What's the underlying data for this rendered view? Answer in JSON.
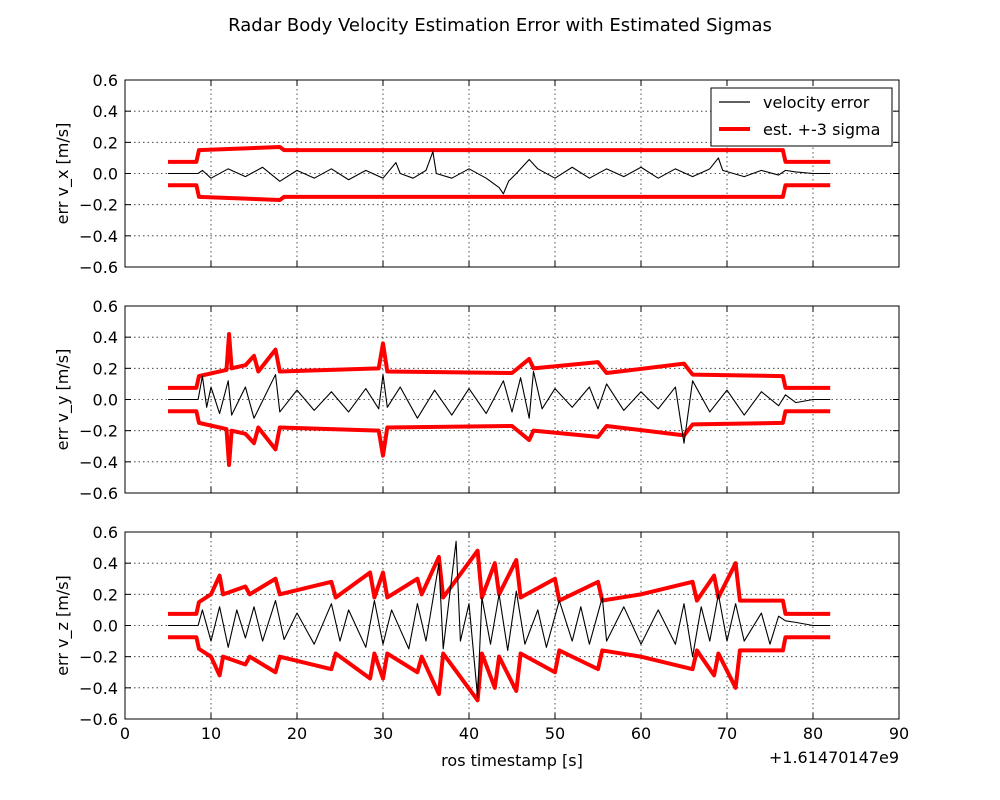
{
  "chart_data": {
    "type": "line",
    "title": "Radar Body Velocity Estimation Error with Estimated Sigmas",
    "xlabel": "ros timestamp [s]",
    "x_offset_label": "+1.61470147e9",
    "xlim": [
      0,
      90
    ],
    "x_ticks": [
      "0",
      "10",
      "20",
      "30",
      "40",
      "50",
      "60",
      "70",
      "80",
      "90"
    ],
    "y_ticks": [
      "0.6",
      "0.4",
      "0.2",
      "0.0",
      "−0.2",
      "−0.4",
      "−0.6"
    ],
    "ylim": [
      -0.6,
      0.6
    ],
    "grid": true,
    "legend": {
      "position": "top-right",
      "entries": [
        {
          "label": "velocity error",
          "color": "#000000"
        },
        {
          "label": "est. +-3 sigma",
          "color": "#ff0000"
        }
      ]
    },
    "colors": {
      "error": "#000000",
      "sigma": "#ff0000"
    },
    "subplots": [
      {
        "ylabel": "err v_x [m/s]",
        "sigma_upper": [
          [
            5,
            0.075
          ],
          [
            8.3,
            0.075
          ],
          [
            8.6,
            0.15
          ],
          [
            18,
            0.17
          ],
          [
            18.5,
            0.15
          ],
          [
            40,
            0.15
          ],
          [
            76.5,
            0.15
          ],
          [
            76.8,
            0.075
          ],
          [
            82,
            0.075
          ]
        ],
        "error": [
          [
            5,
            0
          ],
          [
            8.5,
            0
          ],
          [
            9,
            0.02
          ],
          [
            10,
            -0.03
          ],
          [
            12,
            0.03
          ],
          [
            14,
            -0.02
          ],
          [
            16,
            0.04
          ],
          [
            18,
            -0.05
          ],
          [
            20,
            0.02
          ],
          [
            22,
            -0.03
          ],
          [
            24,
            0.03
          ],
          [
            26,
            -0.04
          ],
          [
            28,
            0.02
          ],
          [
            30,
            -0.03
          ],
          [
            31.5,
            0.07
          ],
          [
            32,
            0.0
          ],
          [
            33.5,
            -0.03
          ],
          [
            35,
            0.02
          ],
          [
            35.8,
            0.14
          ],
          [
            36.2,
            0.0
          ],
          [
            38,
            -0.03
          ],
          [
            40,
            0.03
          ],
          [
            42,
            -0.03
          ],
          [
            43.5,
            -0.09
          ],
          [
            44,
            -0.13
          ],
          [
            44.6,
            -0.05
          ],
          [
            45.5,
            0.0
          ],
          [
            47,
            0.09
          ],
          [
            48,
            0.03
          ],
          [
            50,
            -0.03
          ],
          [
            52,
            0.04
          ],
          [
            54,
            -0.03
          ],
          [
            56,
            0.03
          ],
          [
            58,
            -0.02
          ],
          [
            60,
            0.04
          ],
          [
            62,
            -0.03
          ],
          [
            64,
            0.03
          ],
          [
            66,
            -0.02
          ],
          [
            68,
            0.03
          ],
          [
            69,
            0.1
          ],
          [
            69.5,
            0.02
          ],
          [
            72,
            -0.02
          ],
          [
            74,
            0.02
          ],
          [
            76,
            -0.01
          ],
          [
            76.8,
            0.02
          ],
          [
            78,
            0.01
          ],
          [
            80,
            0.0
          ],
          [
            82,
            0
          ]
        ]
      },
      {
        "ylabel": "err v_y [m/s]",
        "sigma_upper": [
          [
            5,
            0.075
          ],
          [
            8.3,
            0.075
          ],
          [
            8.6,
            0.15
          ],
          [
            11.8,
            0.19
          ],
          [
            12.1,
            0.42
          ],
          [
            12.4,
            0.2
          ],
          [
            14,
            0.22
          ],
          [
            15,
            0.28
          ],
          [
            15.5,
            0.18
          ],
          [
            17.5,
            0.32
          ],
          [
            18,
            0.18
          ],
          [
            29.5,
            0.2
          ],
          [
            30,
            0.36
          ],
          [
            30.5,
            0.18
          ],
          [
            45,
            0.17
          ],
          [
            47,
            0.26
          ],
          [
            47.5,
            0.2
          ],
          [
            55,
            0.24
          ],
          [
            56,
            0.17
          ],
          [
            65,
            0.23
          ],
          [
            66,
            0.16
          ],
          [
            76.5,
            0.15
          ],
          [
            76.8,
            0.075
          ],
          [
            82,
            0.075
          ]
        ],
        "error": [
          [
            5,
            0
          ],
          [
            8.5,
            0
          ],
          [
            9,
            0.15
          ],
          [
            9.5,
            -0.05
          ],
          [
            10,
            0.08
          ],
          [
            11,
            -0.09
          ],
          [
            12,
            0.12
          ],
          [
            12.4,
            -0.1
          ],
          [
            14,
            0.08
          ],
          [
            15,
            -0.12
          ],
          [
            17.5,
            0.16
          ],
          [
            18,
            -0.08
          ],
          [
            20,
            0.06
          ],
          [
            22,
            -0.07
          ],
          [
            24,
            0.05
          ],
          [
            26,
            -0.08
          ],
          [
            28,
            0.07
          ],
          [
            29.5,
            -0.06
          ],
          [
            30,
            0.16
          ],
          [
            30.5,
            -0.05
          ],
          [
            32,
            0.08
          ],
          [
            34,
            -0.12
          ],
          [
            36,
            0.06
          ],
          [
            38,
            -0.1
          ],
          [
            40,
            0.07
          ],
          [
            42,
            -0.09
          ],
          [
            44,
            0.12
          ],
          [
            45,
            -0.08
          ],
          [
            46,
            0.14
          ],
          [
            47,
            -0.12
          ],
          [
            47.5,
            0.18
          ],
          [
            48.5,
            -0.06
          ],
          [
            50,
            0.07
          ],
          [
            52,
            -0.05
          ],
          [
            54,
            0.08
          ],
          [
            55,
            -0.06
          ],
          [
            56,
            0.1
          ],
          [
            58,
            -0.07
          ],
          [
            60,
            0.05
          ],
          [
            62,
            -0.06
          ],
          [
            64,
            0.08
          ],
          [
            65,
            -0.28
          ],
          [
            66,
            0.12
          ],
          [
            68,
            -0.08
          ],
          [
            70,
            0.06
          ],
          [
            72,
            -0.1
          ],
          [
            74,
            0.05
          ],
          [
            76,
            -0.04
          ],
          [
            76.8,
            0.03
          ],
          [
            78,
            -0.02
          ],
          [
            80,
            0.0
          ],
          [
            82,
            0
          ]
        ]
      },
      {
        "ylabel": "err v_z [m/s]",
        "sigma_upper": [
          [
            5,
            0.075
          ],
          [
            8.3,
            0.075
          ],
          [
            8.6,
            0.15
          ],
          [
            10,
            0.2
          ],
          [
            11,
            0.32
          ],
          [
            11.4,
            0.2
          ],
          [
            14,
            0.25
          ],
          [
            14.5,
            0.2
          ],
          [
            17.5,
            0.3
          ],
          [
            18,
            0.2
          ],
          [
            24,
            0.28
          ],
          [
            24.5,
            0.18
          ],
          [
            28.5,
            0.34
          ],
          [
            29,
            0.18
          ],
          [
            30,
            0.34
          ],
          [
            30.5,
            0.18
          ],
          [
            34,
            0.3
          ],
          [
            34.5,
            0.2
          ],
          [
            36.5,
            0.44
          ],
          [
            37,
            0.18
          ],
          [
            41,
            0.48
          ],
          [
            41.5,
            0.18
          ],
          [
            43,
            0.4
          ],
          [
            43.5,
            0.2
          ],
          [
            45.5,
            0.42
          ],
          [
            46,
            0.18
          ],
          [
            50,
            0.3
          ],
          [
            50.5,
            0.16
          ],
          [
            55,
            0.28
          ],
          [
            55.5,
            0.16
          ],
          [
            60,
            0.2
          ],
          [
            66,
            0.28
          ],
          [
            66.5,
            0.16
          ],
          [
            68.5,
            0.32
          ],
          [
            69,
            0.18
          ],
          [
            71,
            0.4
          ],
          [
            71.5,
            0.16
          ],
          [
            76.5,
            0.16
          ],
          [
            76.8,
            0.075
          ],
          [
            82,
            0.075
          ]
        ],
        "error": [
          [
            5,
            0
          ],
          [
            8.5,
            0
          ],
          [
            9,
            0.1
          ],
          [
            10,
            -0.1
          ],
          [
            11,
            0.12
          ],
          [
            12,
            -0.14
          ],
          [
            13,
            0.1
          ],
          [
            14,
            -0.08
          ],
          [
            15,
            0.12
          ],
          [
            16,
            -0.1
          ],
          [
            17.5,
            0.16
          ],
          [
            18.5,
            -0.09
          ],
          [
            20,
            0.08
          ],
          [
            22,
            -0.12
          ],
          [
            24,
            0.14
          ],
          [
            25,
            -0.1
          ],
          [
            26,
            0.1
          ],
          [
            28,
            -0.14
          ],
          [
            29,
            0.16
          ],
          [
            30,
            -0.12
          ],
          [
            31,
            0.1
          ],
          [
            33,
            -0.15
          ],
          [
            34,
            0.14
          ],
          [
            35,
            -0.1
          ],
          [
            36.5,
            0.4
          ],
          [
            37,
            -0.15
          ],
          [
            38.5,
            0.54
          ],
          [
            39,
            -0.1
          ],
          [
            40,
            0.14
          ],
          [
            41,
            -0.46
          ],
          [
            41.5,
            0.18
          ],
          [
            42.5,
            -0.12
          ],
          [
            43.5,
            0.2
          ],
          [
            44.5,
            -0.16
          ],
          [
            45.5,
            0.22
          ],
          [
            46.5,
            -0.12
          ],
          [
            48,
            0.1
          ],
          [
            49,
            -0.14
          ],
          [
            50.5,
            0.16
          ],
          [
            52,
            -0.1
          ],
          [
            53,
            0.12
          ],
          [
            54,
            -0.12
          ],
          [
            55.5,
            0.18
          ],
          [
            56,
            -0.1
          ],
          [
            58,
            0.12
          ],
          [
            60,
            -0.12
          ],
          [
            62,
            0.1
          ],
          [
            64,
            -0.12
          ],
          [
            65,
            0.14
          ],
          [
            66,
            -0.2
          ],
          [
            67,
            0.12
          ],
          [
            68,
            -0.1
          ],
          [
            69,
            0.2
          ],
          [
            69.5,
            0.05
          ],
          [
            70,
            -0.1
          ],
          [
            71,
            0.14
          ],
          [
            72,
            -0.1
          ],
          [
            74,
            0.08
          ],
          [
            75,
            -0.12
          ],
          [
            76,
            0.06
          ],
          [
            76.8,
            0.03
          ],
          [
            78,
            0.02
          ],
          [
            80,
            0.0
          ],
          [
            82,
            0
          ]
        ]
      }
    ]
  }
}
